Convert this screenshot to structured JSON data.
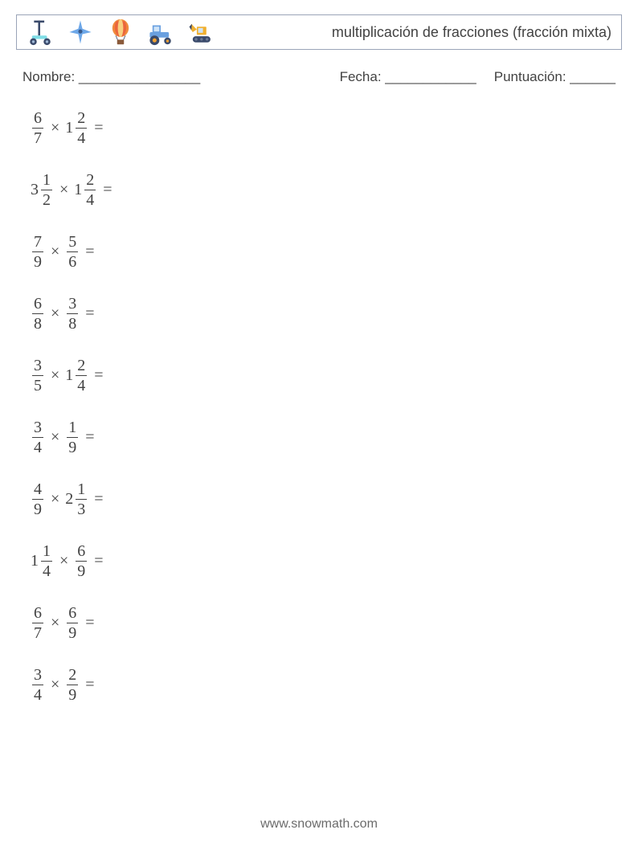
{
  "header": {
    "title": "multiplicación de fracciones (fracción mixta)",
    "icons": [
      {
        "name": "scooter-icon"
      },
      {
        "name": "airplane-icon"
      },
      {
        "name": "balloon-icon"
      },
      {
        "name": "tractor-icon"
      },
      {
        "name": "excavator-icon"
      }
    ],
    "border_color": "#9aa4b8"
  },
  "meta": {
    "name_label": "Nombre: ________________",
    "date_label": "Fecha: ____________",
    "score_label": "Puntuación: ______"
  },
  "problems": [
    {
      "a": {
        "whole": null,
        "num": "6",
        "den": "7"
      },
      "b": {
        "whole": "1",
        "num": "2",
        "den": "4"
      }
    },
    {
      "a": {
        "whole": "3",
        "num": "1",
        "den": "2"
      },
      "b": {
        "whole": "1",
        "num": "2",
        "den": "4"
      }
    },
    {
      "a": {
        "whole": null,
        "num": "7",
        "den": "9"
      },
      "b": {
        "whole": null,
        "num": "5",
        "den": "6"
      }
    },
    {
      "a": {
        "whole": null,
        "num": "6",
        "den": "8"
      },
      "b": {
        "whole": null,
        "num": "3",
        "den": "8"
      }
    },
    {
      "a": {
        "whole": null,
        "num": "3",
        "den": "5"
      },
      "b": {
        "whole": "1",
        "num": "2",
        "den": "4"
      }
    },
    {
      "a": {
        "whole": null,
        "num": "3",
        "den": "4"
      },
      "b": {
        "whole": null,
        "num": "1",
        "den": "9"
      }
    },
    {
      "a": {
        "whole": null,
        "num": "4",
        "den": "9"
      },
      "b": {
        "whole": "2",
        "num": "1",
        "den": "3"
      }
    },
    {
      "a": {
        "whole": "1",
        "num": "1",
        "den": "4"
      },
      "b": {
        "whole": null,
        "num": "6",
        "den": "9"
      }
    },
    {
      "a": {
        "whole": null,
        "num": "6",
        "den": "7"
      },
      "b": {
        "whole": null,
        "num": "6",
        "den": "9"
      }
    },
    {
      "a": {
        "whole": null,
        "num": "3",
        "den": "4"
      },
      "b": {
        "whole": null,
        "num": "2",
        "den": "9"
      }
    }
  ],
  "operator": "×",
  "equals": "=",
  "footer": "www.snowmath.com",
  "style": {
    "text_color": "#424242",
    "background": "#ffffff",
    "font_size_problem": 20,
    "font_size_title": 18,
    "font_size_meta": 17,
    "problem_row_gap": 31,
    "icon_colors": {
      "scooter": {
        "body": "#7fdde6",
        "accent": "#3a4a6b"
      },
      "airplane": {
        "body": "#6da7e8",
        "accent": "#3a5a8a"
      },
      "balloon": {
        "envelope": "#f08a3c",
        "stripes": "#e84c3d",
        "basket": "#8a5a3a"
      },
      "tractor": {
        "body": "#6aa0e0",
        "wheel": "#3a4a6b",
        "accent": "#f0a030"
      },
      "excavator": {
        "body": "#f0b030",
        "track": "#3a4a6b"
      }
    }
  }
}
